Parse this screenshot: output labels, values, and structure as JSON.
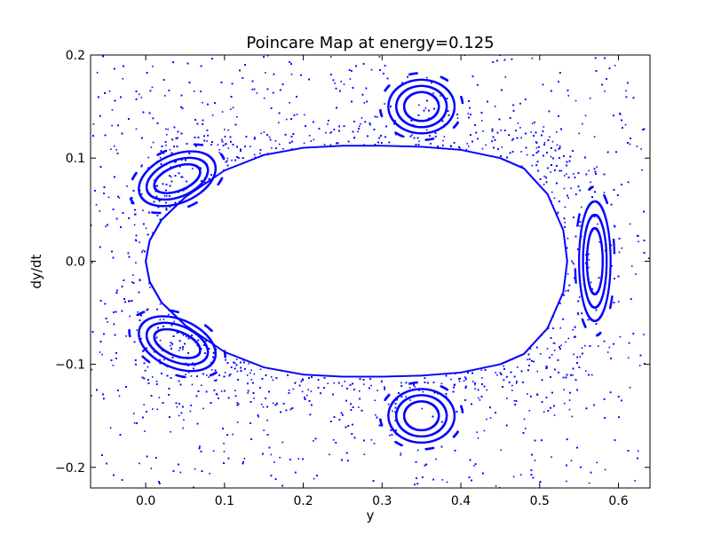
{
  "chart_data": {
    "type": "scatter",
    "title": "Poincare Map at energy=0.125",
    "xlabel": "y",
    "ylabel": "dy/dt",
    "xlim": [
      -0.07,
      0.64
    ],
    "ylim": [
      -0.22,
      0.2
    ],
    "xticks": [
      {
        "value": 0.0,
        "label": "0.0"
      },
      {
        "value": 0.1,
        "label": "0.1"
      },
      {
        "value": 0.2,
        "label": "0.2"
      },
      {
        "value": 0.3,
        "label": "0.3"
      },
      {
        "value": 0.4,
        "label": "0.4"
      },
      {
        "value": 0.5,
        "label": "0.5"
      },
      {
        "value": 0.6,
        "label": "0.6"
      }
    ],
    "yticks": [
      {
        "value": -0.2,
        "label": "−0.2"
      },
      {
        "value": -0.1,
        "label": "−0.1"
      },
      {
        "value": 0.0,
        "label": "0.0"
      },
      {
        "value": 0.1,
        "label": "0.1"
      },
      {
        "value": 0.2,
        "label": "0.2"
      }
    ],
    "grid": false,
    "marker_color": "#0000ff",
    "series": [
      {
        "role": "outer separatrix boundary",
        "x": [
          0.0,
          0.005,
          0.02,
          0.05,
          0.1,
          0.15,
          0.2,
          0.25,
          0.3,
          0.35,
          0.4,
          0.45,
          0.48,
          0.51,
          0.53,
          0.535,
          0.53,
          0.51,
          0.48,
          0.45,
          0.4,
          0.35,
          0.3,
          0.25,
          0.2,
          0.15,
          0.1,
          0.05,
          0.02,
          0.005,
          0.0
        ],
        "y": [
          0.0,
          0.02,
          0.04,
          0.062,
          0.088,
          0.103,
          0.11,
          0.112,
          0.112,
          0.111,
          0.108,
          0.1,
          0.09,
          0.065,
          0.03,
          0.0,
          -0.03,
          -0.065,
          -0.09,
          -0.1,
          -0.108,
          -0.111,
          -0.112,
          -0.112,
          -0.11,
          -0.103,
          -0.088,
          -0.062,
          -0.04,
          -0.02,
          0.0
        ]
      },
      {
        "role": "island chains",
        "islands": [
          {
            "center": [
              0.04,
              0.08
            ],
            "radii": [
              [
                0.03,
                0.012
              ],
              [
                0.04,
                0.018
              ],
              [
                0.05,
                0.024
              ]
            ],
            "tilt_deg": 15
          },
          {
            "center": [
              0.04,
              -0.08
            ],
            "radii": [
              [
                0.03,
                0.012
              ],
              [
                0.04,
                0.018
              ],
              [
                0.05,
                0.024
              ]
            ],
            "tilt_deg": -15
          },
          {
            "center": [
              0.35,
              0.15
            ],
            "radii": [
              [
                0.022,
                0.014
              ],
              [
                0.032,
                0.02
              ],
              [
                0.042,
                0.026
              ]
            ],
            "tilt_deg": 0
          },
          {
            "center": [
              0.35,
              -0.15
            ],
            "radii": [
              [
                0.022,
                0.014
              ],
              [
                0.032,
                0.02
              ],
              [
                0.042,
                0.026
              ]
            ],
            "tilt_deg": 0
          },
          {
            "center": [
              0.57,
              0.0
            ],
            "radii": [
              [
                0.01,
                0.032
              ],
              [
                0.015,
                0.045
              ],
              [
                0.02,
                0.058
              ]
            ],
            "tilt_deg": 0
          }
        ]
      },
      {
        "role": "chaotic sea",
        "x_range": [
          -0.07,
          0.64
        ],
        "y_range": [
          -0.22,
          0.2
        ],
        "point_count": 7000
      }
    ]
  }
}
